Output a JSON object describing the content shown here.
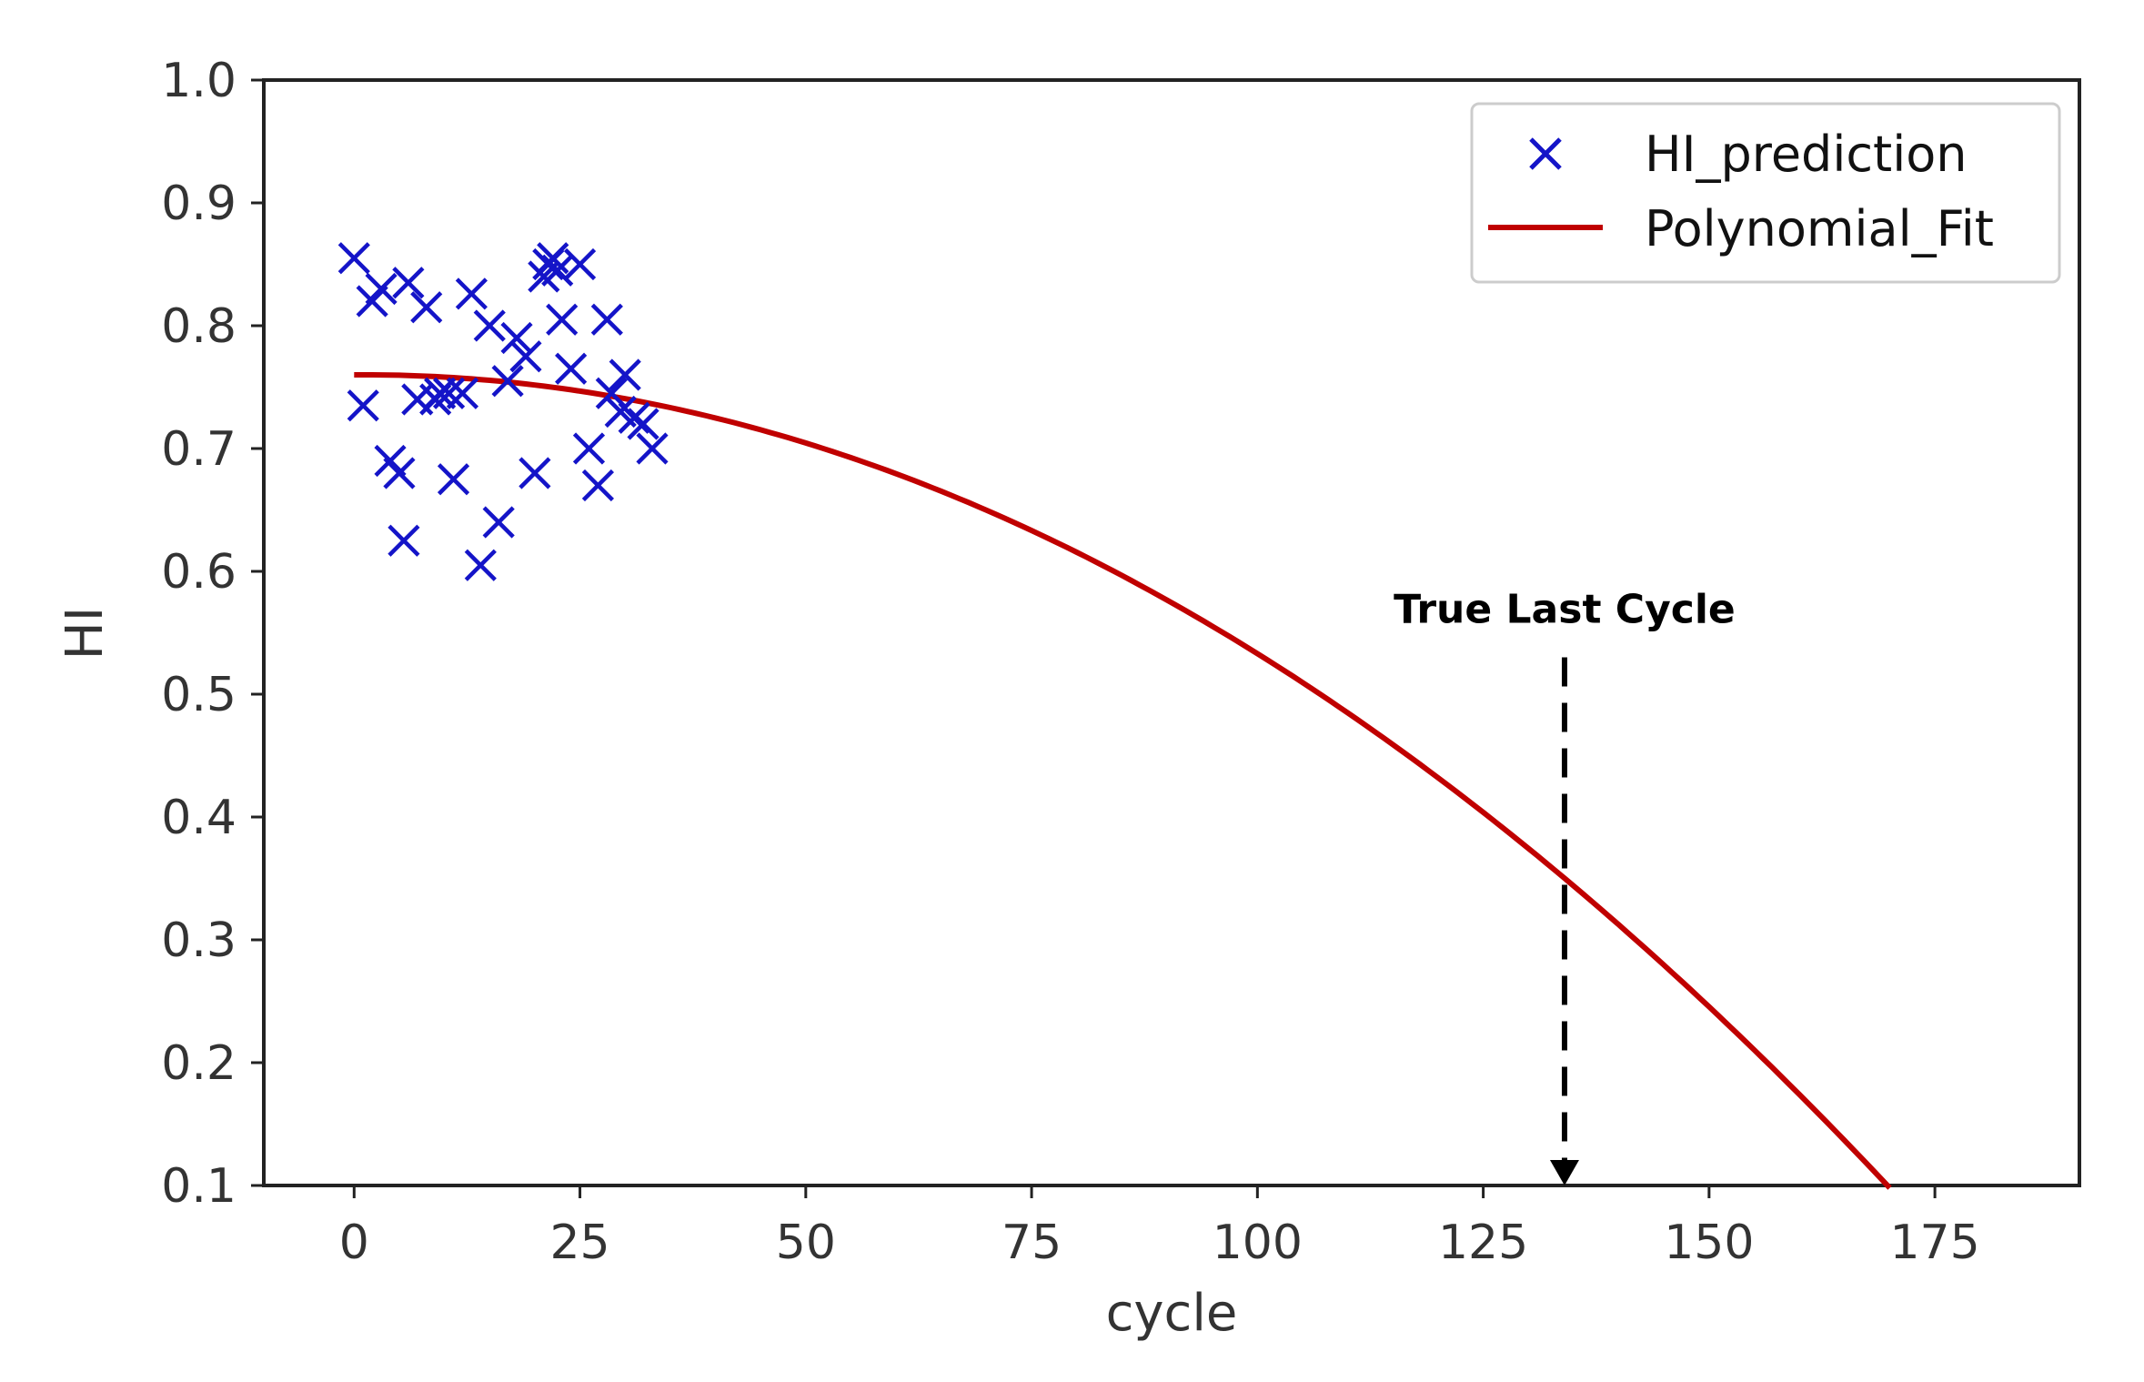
{
  "chart_data": {
    "type": "scatter",
    "title": "",
    "xlabel": "cycle",
    "ylabel": "HI",
    "xlim": [
      -10,
      191
    ],
    "ylim": [
      0.1,
      1.0
    ],
    "xticks": [
      0,
      25,
      50,
      75,
      100,
      125,
      150,
      175
    ],
    "yticks": [
      0.1,
      0.2,
      0.3,
      0.4,
      0.5,
      0.6,
      0.7,
      0.8,
      0.9,
      1.0
    ],
    "xtick_labels": [
      "0",
      "25",
      "50",
      "75",
      "100",
      "125",
      "150",
      "175"
    ],
    "ytick_labels": [
      "0.1",
      "0.2",
      "0.3",
      "0.4",
      "0.5",
      "0.6",
      "0.7",
      "0.8",
      "0.9",
      "1.0"
    ],
    "grid": false,
    "legend_position": "top-right",
    "series": [
      {
        "name": "HI_prediction",
        "kind": "scatter",
        "marker": "x",
        "color": "#1414c8",
        "x": [
          0,
          1,
          2,
          3,
          4,
          5,
          5.5,
          6,
          7,
          8,
          9,
          9.5,
          10.5,
          11,
          12,
          13,
          14,
          15,
          16,
          17,
          18,
          19,
          20,
          21,
          21.5,
          22,
          22.5,
          23,
          24,
          25,
          26,
          27,
          28,
          28.5,
          29.5,
          30,
          31,
          32,
          33
        ],
        "y": [
          0.855,
          0.735,
          0.82,
          0.83,
          0.69,
          0.68,
          0.625,
          0.835,
          0.74,
          0.815,
          0.74,
          0.745,
          0.745,
          0.675,
          0.745,
          0.826,
          0.605,
          0.8,
          0.64,
          0.755,
          0.79,
          0.775,
          0.68,
          0.84,
          0.85,
          0.855,
          0.845,
          0.805,
          0.765,
          0.85,
          0.7,
          0.67,
          0.805,
          0.745,
          0.73,
          0.76,
          0.725,
          0.72,
          0.7
        ]
      },
      {
        "name": "Polynomial_Fit",
        "kind": "line",
        "color": "#c00000",
        "coefficients": [
          0.76,
          5e-05,
          -2.32e-05
        ],
        "x_range": [
          0,
          170
        ]
      }
    ],
    "annotations": [
      {
        "text": "True Last Cycle",
        "x": 134,
        "y_from": 0.53,
        "y_to": 0.1,
        "style": "dashed-arrow"
      }
    ]
  }
}
